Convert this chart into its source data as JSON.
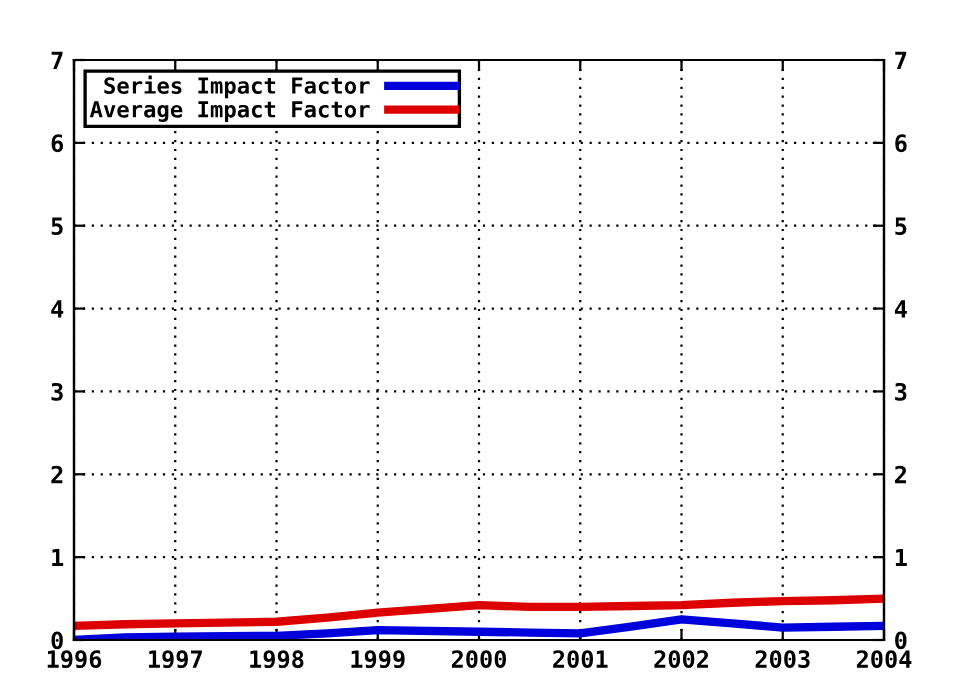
{
  "chart_data": {
    "type": "line",
    "x": [
      1996,
      1996.5,
      1997,
      1998,
      1998.5,
      1999,
      2000,
      2000.5,
      2001,
      2001.5,
      2002,
      2002.5,
      2003,
      2003.5,
      2004
    ],
    "series": [
      {
        "name": "Series Impact Factor",
        "color": "#0000dd",
        "values": [
          0.0,
          0.03,
          0.04,
          0.05,
          0.08,
          0.12,
          0.1,
          0.09,
          0.08,
          0.16,
          0.25,
          0.2,
          0.15,
          0.16,
          0.17
        ]
      },
      {
        "name": "Average Impact Factor",
        "color": "#dd0000",
        "values": [
          0.17,
          0.19,
          0.2,
          0.22,
          0.27,
          0.33,
          0.42,
          0.4,
          0.4,
          0.41,
          0.42,
          0.45,
          0.47,
          0.48,
          0.5
        ]
      }
    ],
    "xlim": [
      1996,
      2004
    ],
    "xticks": [
      1996,
      1997,
      1998,
      1999,
      2000,
      2001,
      2002,
      2003,
      2004
    ],
    "ylim": [
      0,
      7
    ],
    "yticks": [
      0,
      1,
      2,
      3,
      4,
      5,
      6,
      7
    ],
    "y2lim": [
      0,
      7
    ],
    "y2ticks": [
      0,
      1,
      2,
      3,
      4,
      5,
      6,
      7
    ],
    "grid": true,
    "legend": "top left",
    "line_style": "solid",
    "marker": "none"
  }
}
